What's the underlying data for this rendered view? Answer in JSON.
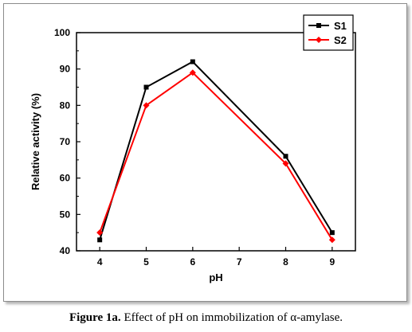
{
  "caption": {
    "label": "Figure 1a.",
    "text": " Effect of pH on immobilization of α-amylase."
  },
  "chart_data": {
    "type": "line",
    "title": "",
    "xlabel": "pH",
    "ylabel": "Relative activity (%)",
    "categories": [
      "4",
      "5",
      "6",
      "7",
      "8",
      "9"
    ],
    "x": [
      4,
      5,
      6,
      8,
      9
    ],
    "ylim": [
      40,
      100
    ],
    "yticks": [
      40,
      50,
      60,
      70,
      80,
      90,
      100
    ],
    "grid": false,
    "legend_position": "top-right",
    "series": [
      {
        "name": "S1",
        "color": "#000000",
        "marker": "square",
        "values": [
          43,
          85,
          92,
          66,
          45
        ]
      },
      {
        "name": "S2",
        "color": "#ff0000",
        "marker": "diamond",
        "values": [
          45,
          80,
          89,
          64,
          43
        ]
      }
    ]
  }
}
